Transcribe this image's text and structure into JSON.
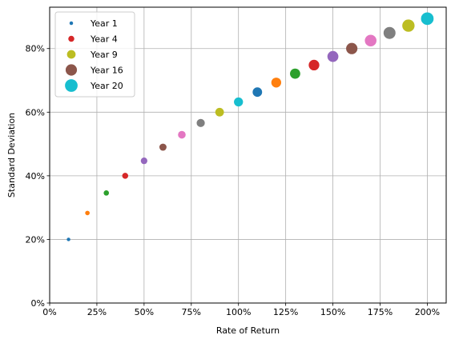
{
  "chart_data": {
    "type": "scatter",
    "xlabel": "Rate of Return",
    "ylabel": "Standard Deviation",
    "xlim": [
      0,
      2.1
    ],
    "ylim": [
      0,
      0.93
    ],
    "x_ticks": [
      0,
      0.25,
      0.5,
      0.75,
      1.0,
      1.25,
      1.5,
      1.75,
      2.0
    ],
    "x_tick_labels": [
      "0%",
      "25%",
      "50%",
      "75%",
      "100%",
      "125%",
      "150%",
      "175%",
      "200%"
    ],
    "y_ticks": [
      0,
      0.2,
      0.4,
      0.6,
      0.8
    ],
    "y_tick_labels": [
      "0%",
      "20%",
      "40%",
      "60%",
      "80%"
    ],
    "grid": true,
    "legend_position": "top-left",
    "legend": [
      {
        "label": "Year 1",
        "year": 1,
        "color": "#1f77b4"
      },
      {
        "label": "Year 4",
        "year": 4,
        "color": "#d62728"
      },
      {
        "label": "Year 9",
        "year": 9,
        "color": "#bcbd22"
      },
      {
        "label": "Year 16",
        "year": 16,
        "color": "#8c564b"
      },
      {
        "label": "Year 20",
        "year": 20,
        "color": "#17becf"
      }
    ],
    "points": [
      {
        "year": 1,
        "x": 0.1,
        "y": 0.2,
        "color": "#1f77b4"
      },
      {
        "year": 2,
        "x": 0.2,
        "y": 0.283,
        "color": "#ff7f0e"
      },
      {
        "year": 3,
        "x": 0.3,
        "y": 0.346,
        "color": "#2ca02c"
      },
      {
        "year": 4,
        "x": 0.4,
        "y": 0.4,
        "color": "#d62728"
      },
      {
        "year": 5,
        "x": 0.5,
        "y": 0.447,
        "color": "#9467bd"
      },
      {
        "year": 6,
        "x": 0.6,
        "y": 0.49,
        "color": "#8c564b"
      },
      {
        "year": 7,
        "x": 0.7,
        "y": 0.529,
        "color": "#e377c2"
      },
      {
        "year": 8,
        "x": 0.8,
        "y": 0.566,
        "color": "#7f7f7f"
      },
      {
        "year": 9,
        "x": 0.9,
        "y": 0.6,
        "color": "#bcbd22"
      },
      {
        "year": 10,
        "x": 1.0,
        "y": 0.632,
        "color": "#17becf"
      },
      {
        "year": 11,
        "x": 1.1,
        "y": 0.663,
        "color": "#1f77b4"
      },
      {
        "year": 12,
        "x": 1.2,
        "y": 0.693,
        "color": "#ff7f0e"
      },
      {
        "year": 13,
        "x": 1.3,
        "y": 0.721,
        "color": "#2ca02c"
      },
      {
        "year": 14,
        "x": 1.4,
        "y": 0.748,
        "color": "#d62728"
      },
      {
        "year": 15,
        "x": 1.5,
        "y": 0.775,
        "color": "#9467bd"
      },
      {
        "year": 16,
        "x": 1.6,
        "y": 0.8,
        "color": "#8c564b"
      },
      {
        "year": 17,
        "x": 1.7,
        "y": 0.825,
        "color": "#e377c2"
      },
      {
        "year": 18,
        "x": 1.8,
        "y": 0.849,
        "color": "#7f7f7f"
      },
      {
        "year": 19,
        "x": 1.9,
        "y": 0.872,
        "color": "#bcbd22"
      },
      {
        "year": 20,
        "x": 2.0,
        "y": 0.894,
        "color": "#17becf"
      }
    ]
  }
}
